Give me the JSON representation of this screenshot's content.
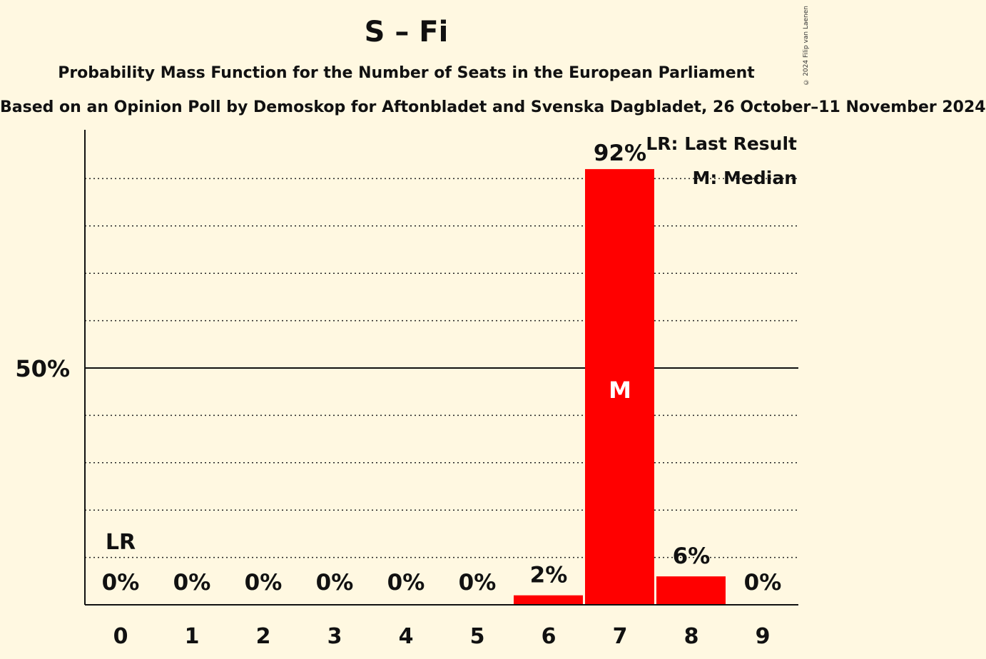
{
  "title": "S – Fi",
  "subtitle": "Probability Mass Function for the Number of Seats in the European Parliament",
  "subtitle2": "Based on an Opinion Poll by Demoskop for Aftonbladet and Svenska Dagbladet, 26 October–11 November 2024",
  "copyright": "© 2024 Filip van Laenen",
  "legend": {
    "lr": "LR: Last Result",
    "median": "M: Median"
  },
  "colors": {
    "bar": "#ff0000",
    "background": "#fff8e1",
    "text": "#111111"
  },
  "chart_data": {
    "type": "bar",
    "categories": [
      "0",
      "1",
      "2",
      "3",
      "4",
      "5",
      "6",
      "7",
      "8",
      "9"
    ],
    "values": [
      0,
      0,
      0,
      0,
      0,
      0,
      2,
      92,
      6,
      0
    ],
    "value_labels": [
      "0%",
      "0%",
      "0%",
      "0%",
      "0%",
      "0%",
      "2%",
      "92%",
      "6%",
      "0%"
    ],
    "ytick_label": "50%",
    "ylim": [
      0,
      100
    ],
    "last_result_category": "0",
    "last_result_label": "LR",
    "median_category": "7",
    "median_label": "M",
    "grid": "dotted every 10%"
  }
}
